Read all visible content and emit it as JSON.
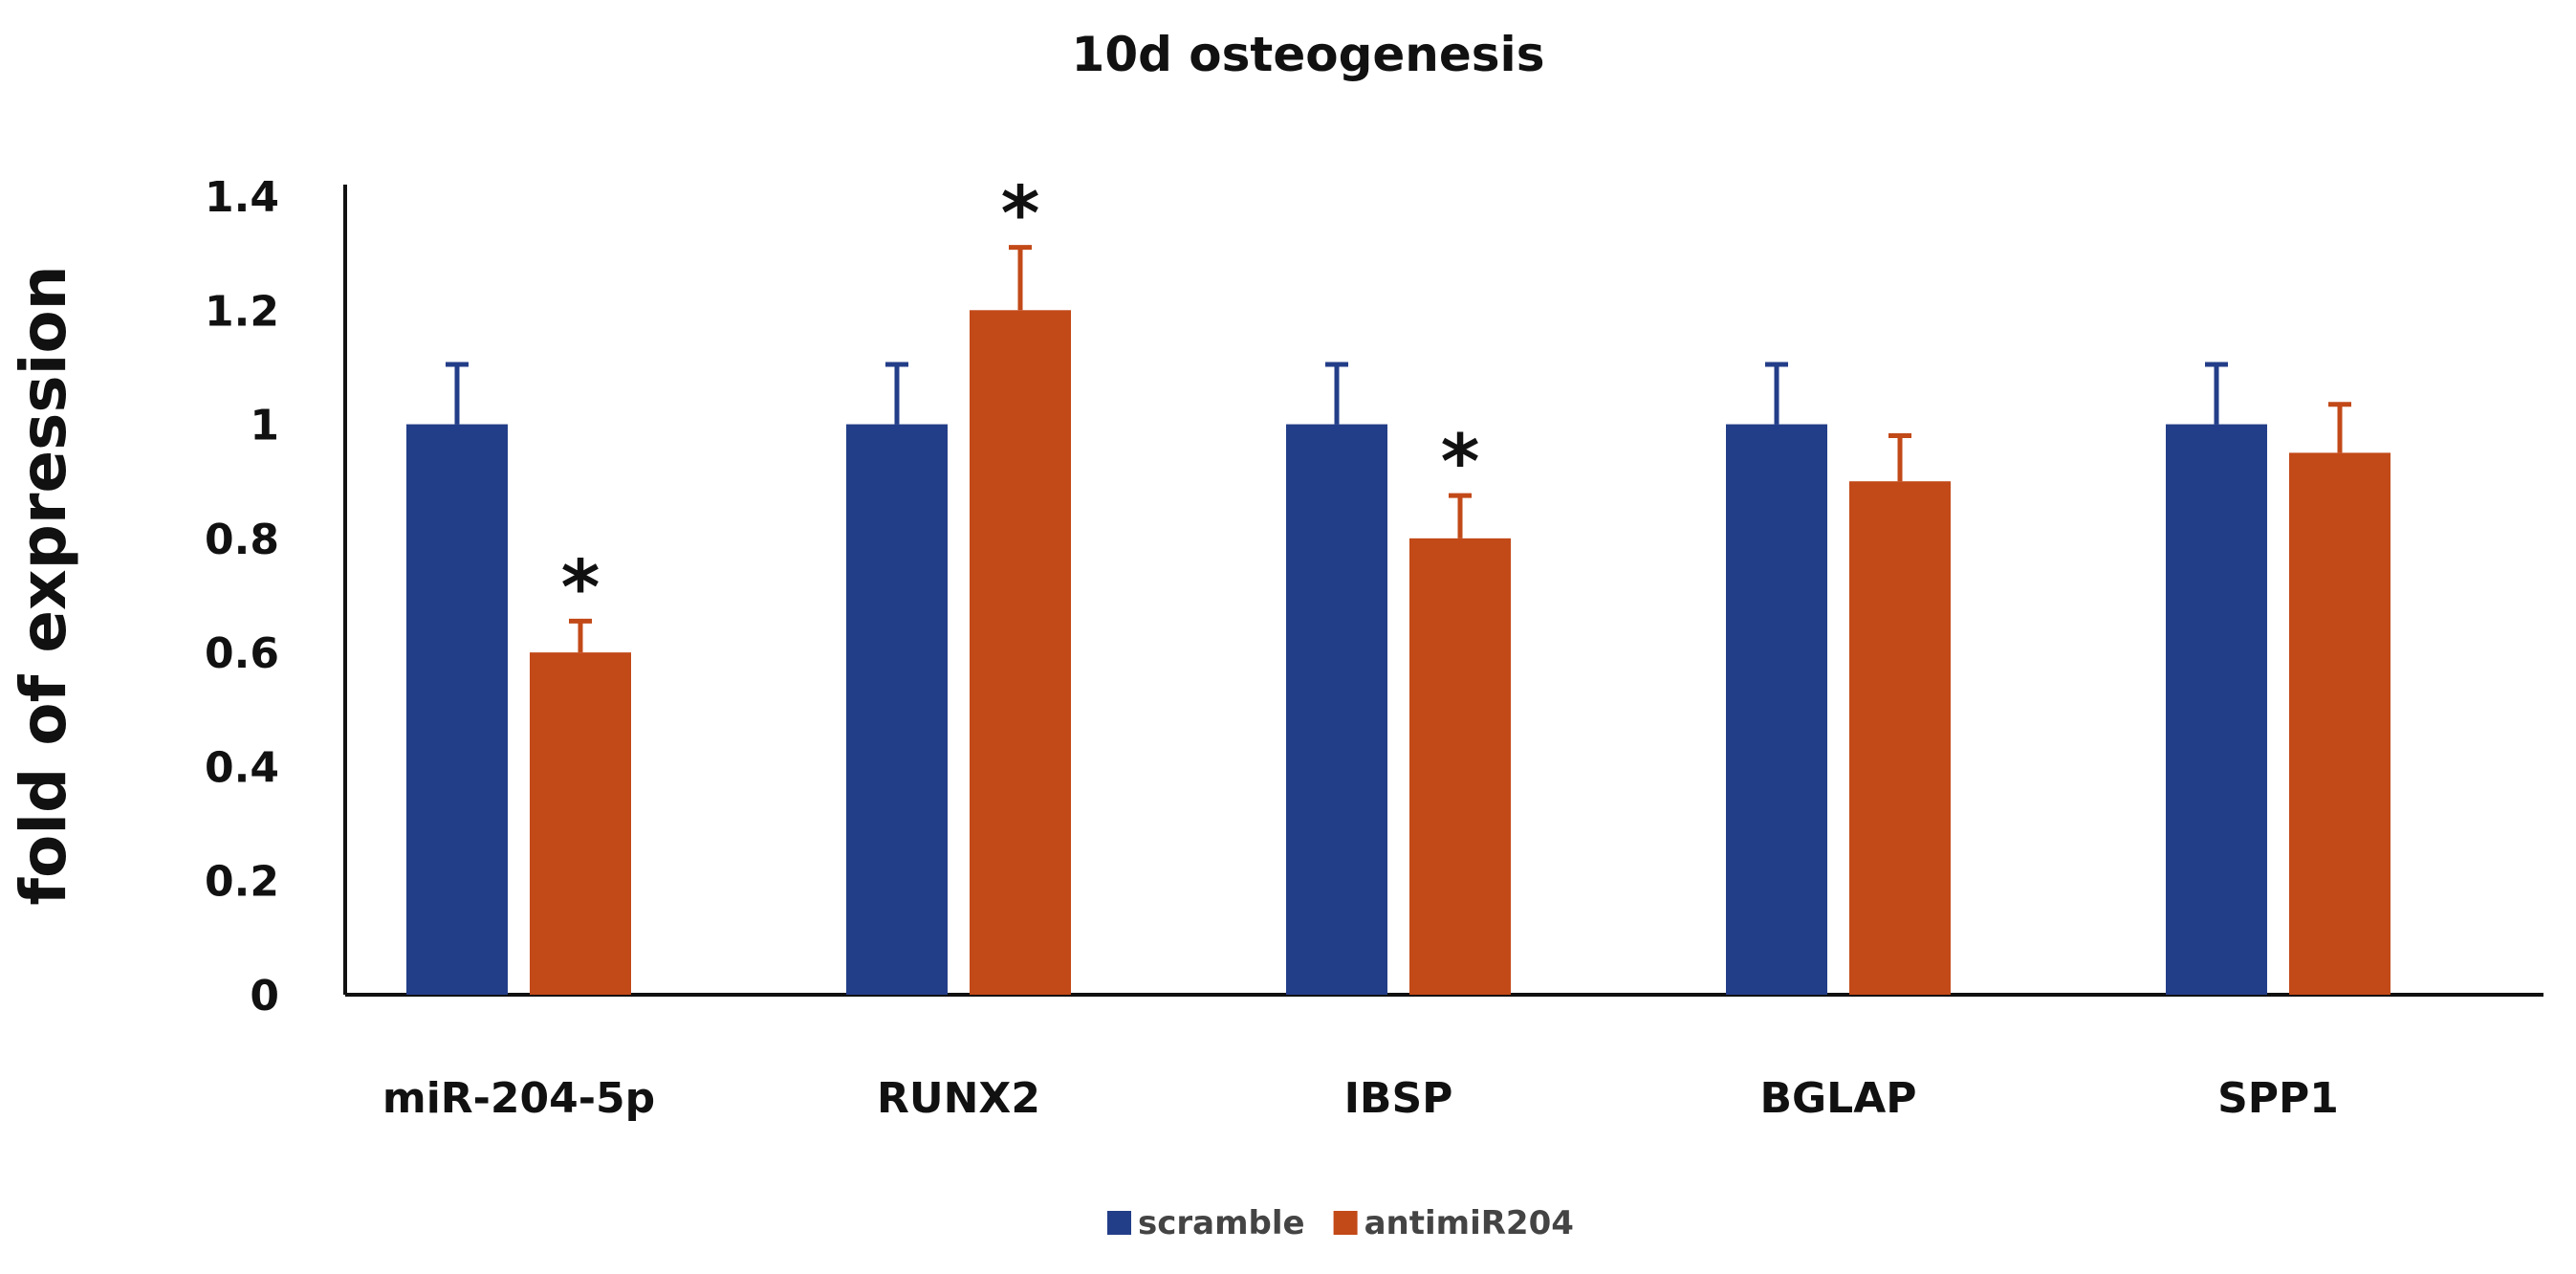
{
  "chart_data": {
    "type": "bar",
    "title": "10d  osteogenesis",
    "xlabel": "",
    "ylabel": "fold of expression",
    "ylim": [
      0,
      1.4
    ],
    "yticks": [
      "0",
      "0.2",
      "0.4",
      "0.6",
      "0.8",
      "1",
      "1.2",
      "1.4"
    ],
    "grid": false,
    "legend_position": "bottom-center",
    "categories": [
      "miR-204-5p",
      "RUNX2",
      "IBSP",
      "BGLAP",
      "SPP1"
    ],
    "series": [
      {
        "name": "scramble",
        "color": "#233e88",
        "values": [
          1.0,
          1.0,
          1.0,
          1.0,
          1.0
        ],
        "errors": [
          0.105,
          0.105,
          0.105,
          0.105,
          0.105
        ]
      },
      {
        "name": "antimiR204",
        "color": "#c24918",
        "values": [
          0.6,
          1.2,
          0.8,
          0.9,
          0.95
        ],
        "errors": [
          0.055,
          0.11,
          0.075,
          0.08,
          0.085
        ]
      }
    ],
    "annotations": [
      {
        "category": "miR-204-5p",
        "series": "antimiR204",
        "text": "*"
      },
      {
        "category": "RUNX2",
        "series": "antimiR204",
        "text": "*"
      },
      {
        "category": "IBSP",
        "series": "antimiR204",
        "text": "*"
      }
    ]
  }
}
